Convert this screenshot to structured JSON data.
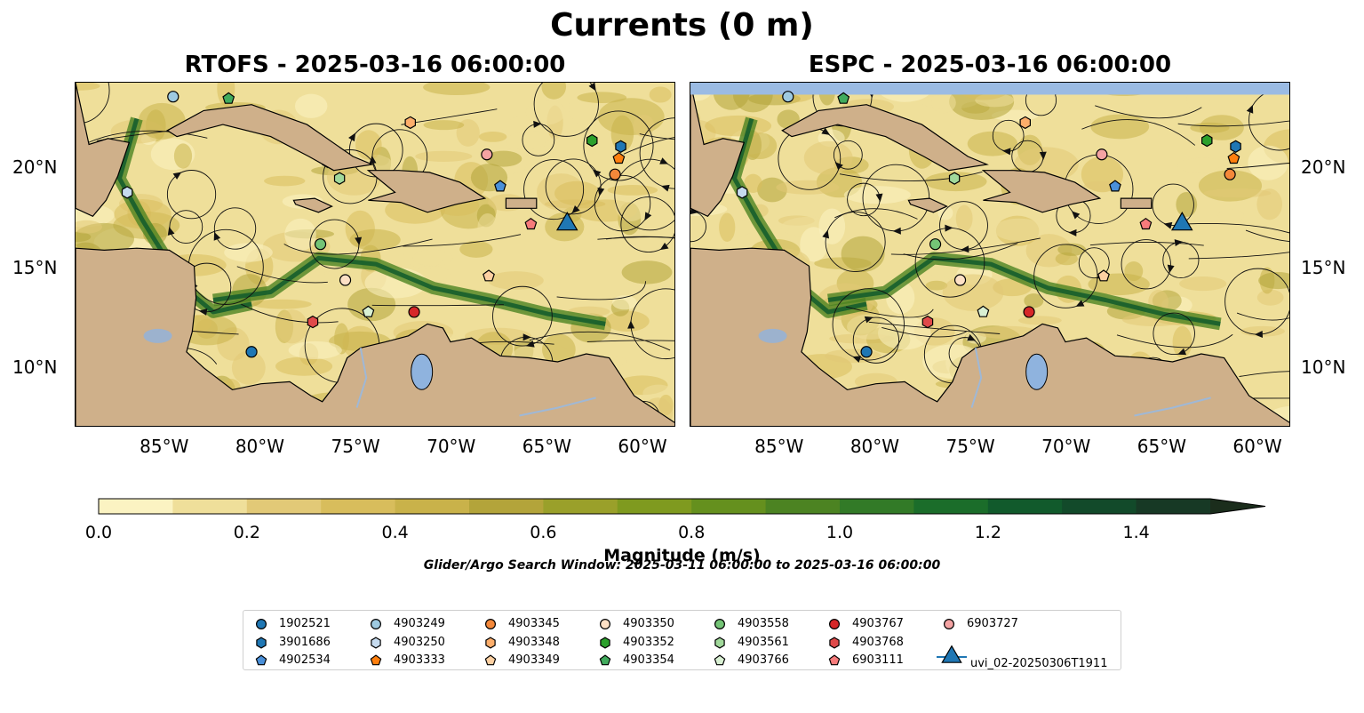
{
  "figure": {
    "suptitle": "Currents (0 m)",
    "search_window": "Glider/Argo Search Window: 2025-03-11 06:00:00 to 2025-03-16 06:00:00"
  },
  "panels": [
    {
      "title": "RTOFS - 2025-03-16 06:00:00"
    },
    {
      "title": "ESPC - 2025-03-16 06:00:00"
    }
  ],
  "axes": {
    "x_ticks": [
      "85°W",
      "80°W",
      "75°W",
      "70°W",
      "65°W",
      "60°W"
    ],
    "y_ticks": [
      "20°N",
      "15°N",
      "10°N"
    ],
    "lon_range": [
      -89.7,
      -58.3
    ],
    "lat_range": [
      7.0,
      24.3
    ]
  },
  "colorbar": {
    "label": "Magnitude (m/s)",
    "ticks": [
      "0.0",
      "0.2",
      "0.4",
      "0.6",
      "0.8",
      "1.0",
      "1.2",
      "1.4"
    ],
    "range": [
      0,
      1.5
    ],
    "colors": [
      "#fbf3c2",
      "#efdf9a",
      "#e2c977",
      "#d8bd5c",
      "#c9b24a",
      "#b3a43a",
      "#9aa02a",
      "#7f9a1f",
      "#65901e",
      "#4c8322",
      "#327a27",
      "#1b6d2a",
      "#115a2c",
      "#124a2a",
      "#173925",
      "#1b2d1c"
    ]
  },
  "colors": {
    "land": "#cfb08a",
    "water_top": "#9bbbe3",
    "lake": "#8fb3de",
    "river": "#9fb8d6"
  },
  "chart_data": {
    "type": "scatter",
    "x_label": "",
    "y_label": "",
    "series": [
      {
        "name": "1902521",
        "marker": "circle",
        "color": "#1f77b4",
        "points": [
          {
            "lon": -80.5,
            "lat": 10.8
          }
        ]
      },
      {
        "name": "3901686",
        "marker": "hexagon",
        "color": "#1f77b4",
        "points": [
          {
            "lon": -61.2,
            "lat": 21.1
          }
        ]
      },
      {
        "name": "4902534",
        "marker": "pentagon",
        "color": "#4a90d9",
        "points": [
          {
            "lon": -67.5,
            "lat": 19.1
          }
        ]
      },
      {
        "name": "4903249",
        "marker": "circle",
        "color": "#9ecae1",
        "points": [
          {
            "lon": -84.6,
            "lat": 23.6
          }
        ]
      },
      {
        "name": "4903250",
        "marker": "hexagon",
        "color": "#c6dbef",
        "points": [
          {
            "lon": -87.0,
            "lat": 18.8
          }
        ]
      },
      {
        "name": "4903333",
        "marker": "pentagon",
        "color": "#ff7f0e",
        "points": [
          {
            "lon": -61.3,
            "lat": 20.5
          }
        ]
      },
      {
        "name": "4903345",
        "marker": "circle",
        "color": "#f4883a",
        "points": [
          {
            "lon": -61.5,
            "lat": 19.7
          }
        ]
      },
      {
        "name": "4903348",
        "marker": "hexagon",
        "color": "#fdae6b",
        "points": [
          {
            "lon": -72.2,
            "lat": 22.3
          }
        ]
      },
      {
        "name": "4903349",
        "marker": "pentagon",
        "color": "#fdd0a2",
        "points": [
          {
            "lon": -68.1,
            "lat": 14.6
          }
        ]
      },
      {
        "name": "4903350",
        "marker": "circle",
        "color": "#fde0c5",
        "points": [
          {
            "lon": -75.6,
            "lat": 14.4
          }
        ]
      },
      {
        "name": "4903352",
        "marker": "hexagon",
        "color": "#2ca02c",
        "points": [
          {
            "lon": -62.7,
            "lat": 21.4
          }
        ]
      },
      {
        "name": "4903354",
        "marker": "pentagon",
        "color": "#41ab5d",
        "points": [
          {
            "lon": -81.7,
            "lat": 23.5
          }
        ]
      },
      {
        "name": "4903558",
        "marker": "circle",
        "color": "#74c476",
        "points": [
          {
            "lon": -76.9,
            "lat": 16.2
          }
        ]
      },
      {
        "name": "4903561",
        "marker": "hexagon",
        "color": "#a1d99b",
        "points": [
          {
            "lon": -75.9,
            "lat": 19.5
          }
        ]
      },
      {
        "name": "4903766",
        "marker": "pentagon",
        "color": "#d9f0d3",
        "points": [
          {
            "lon": -74.4,
            "lat": 12.8
          }
        ]
      },
      {
        "name": "4903767",
        "marker": "circle",
        "color": "#d62728",
        "points": [
          {
            "lon": -72.0,
            "lat": 12.8
          }
        ]
      },
      {
        "name": "4903768",
        "marker": "hexagon",
        "color": "#e04a4a",
        "points": [
          {
            "lon": -77.3,
            "lat": 12.3
          }
        ]
      },
      {
        "name": "6903111",
        "marker": "pentagon",
        "color": "#f77b7b",
        "points": [
          {
            "lon": -65.9,
            "lat": 17.2
          }
        ]
      },
      {
        "name": "6903727",
        "marker": "circle",
        "color": "#f4a3a3",
        "points": [
          {
            "lon": -68.2,
            "lat": 20.7
          }
        ]
      },
      {
        "name": "uvi_02-20250306T1911",
        "marker": "triangle",
        "color": "#1f77b4",
        "points": [
          {
            "lon": -64.0,
            "lat": 17.2
          }
        ]
      }
    ]
  }
}
